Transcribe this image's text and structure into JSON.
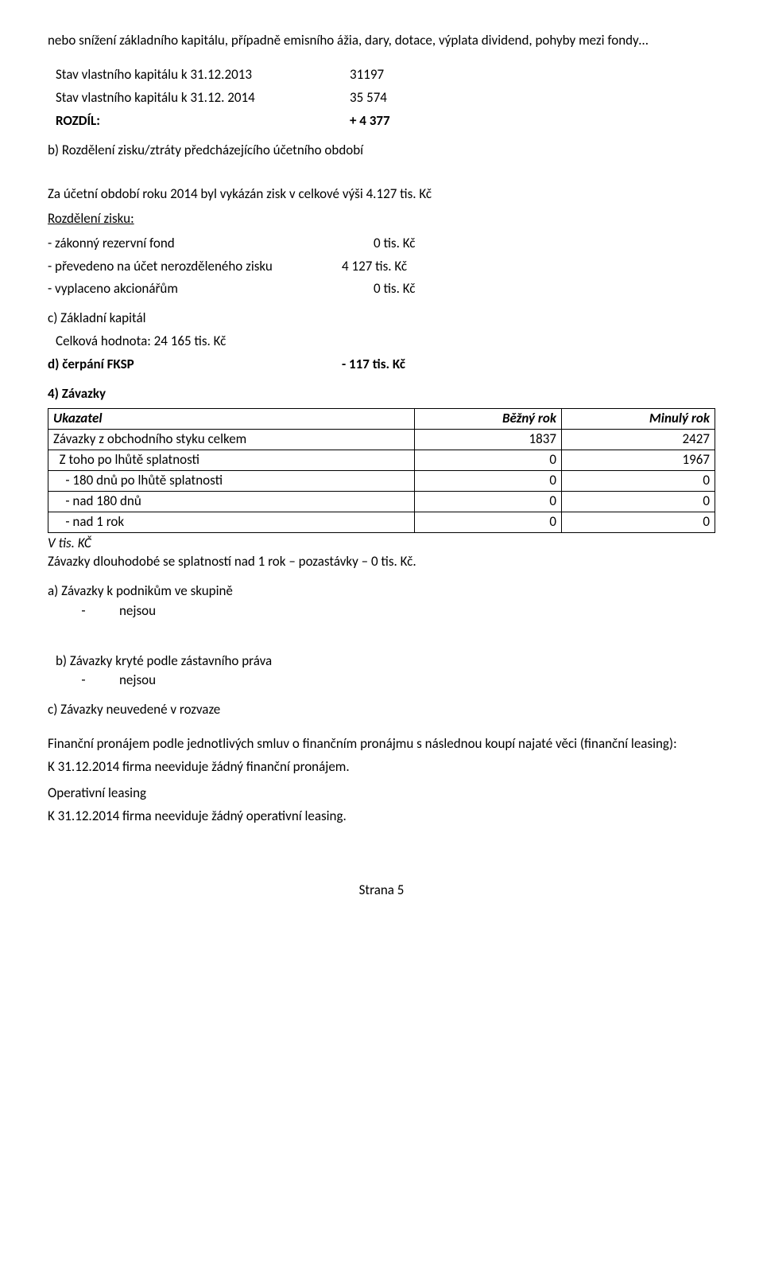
{
  "intro": {
    "line1": "nebo snížení základního kapitálu, případně emisního ážia, dary, dotace, výplata dividend, pohyby mezi fondy…"
  },
  "stav": {
    "row1_label": "Stav vlastního kapitálu k  31.12.2013",
    "row1_val": "31197",
    "row2_label": "Stav vlastního kapitálu k  31.12. 2014",
    "row2_val": "35 574",
    "rozdil_label": "ROZDÍL:",
    "rozdil_val": "+ 4 377"
  },
  "b": {
    "title": "b) Rozdělení zisku/ztráty předcházejícího účetního období",
    "sentence": "Za účetní období roku 2014 byl vykázán zisk v celkové výši 4.127 tis. Kč",
    "rozdeleni_label": "Rozdělení zisku:",
    "r1_label": "- zákonný rezervní fond",
    "r1_val": "0 tis. Kč",
    "r2_label": "- převedeno na účet nerozděleného zisku",
    "r2_val": "4 127 tis. Kč",
    "r3_label": "- vyplaceno akcionářům",
    "r3_val": "0 tis. Kč"
  },
  "c": {
    "title": "c) Základní kapitál",
    "line": "Celková  hodnota:  24 165 tis. Kč"
  },
  "d": {
    "label": "d) čerpání FKSP",
    "val": "- 117 tis. Kč"
  },
  "sec4": {
    "title": "4) Závazky",
    "thead": {
      "c0": "Ukazatel",
      "c1": "Běžný rok",
      "c2": "Minulý rok"
    },
    "rows": [
      {
        "c0": "Závazky z obchodního styku celkem",
        "c1": "1837",
        "c2": "2427"
      },
      {
        "c0": "  Z toho po lhůtě splatnosti",
        "c1": "0",
        "c2": "1967"
      },
      {
        "c0": "    - 180 dnů po lhůtě splatnosti",
        "c1": "0",
        "c2": "0"
      },
      {
        "c0": "    - nad 180 dnů",
        "c1": "0",
        "c2": "0"
      },
      {
        "c0": "    - nad 1 rok",
        "c1": "0",
        "c2": "0"
      }
    ],
    "note1": "V tis. KČ",
    "note2": "Závazky dlouhodobé se splatností nad 1 rok – pozastávky – 0 tis. Kč."
  },
  "a2": {
    "title": "a)  Závazky k podnikům ve skupině",
    "dash": "-",
    "txt": "nejsou"
  },
  "b2": {
    "title": "b) Závazky kryté podle zástavního práva",
    "dash": "-",
    "txt": "nejsou"
  },
  "c2": {
    "title": "c) Závazky neuvedené v rozvaze",
    "p1": "Finanční pronájem podle jednotlivých smluv o finančním  pronájmu s následnou koupí najaté věci (finanční leasing):",
    "p2": "K 31.12.2014  firma neeviduje žádný finanční pronájem.",
    "p3": "Operativní leasing",
    "p4": "K 31.12.2014  firma neeviduje žádný operativní leasing."
  },
  "footer": "Strana 5"
}
